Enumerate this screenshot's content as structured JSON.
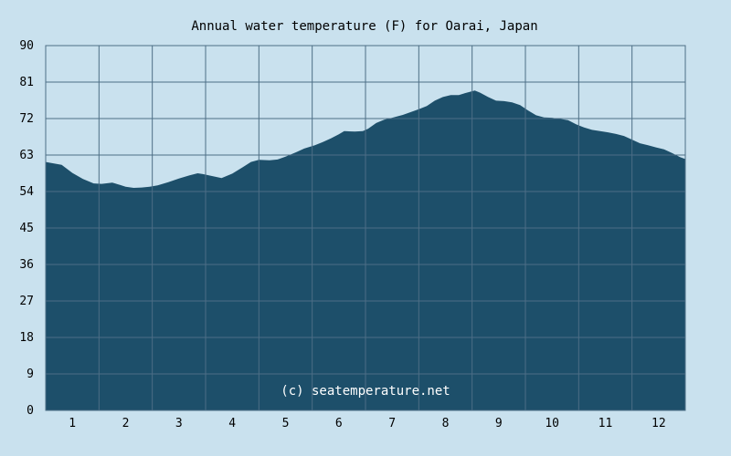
{
  "chart_data": {
    "type": "area",
    "title": "Annual water temperature (F) for Oarai, Japan",
    "xlabel": "",
    "ylabel": "",
    "x_ticks": [
      "1",
      "2",
      "3",
      "4",
      "5",
      "6",
      "7",
      "8",
      "9",
      "10",
      "11",
      "12"
    ],
    "y_ticks": [
      "0",
      "9",
      "18",
      "27",
      "36",
      "45",
      "54",
      "63",
      "72",
      "81",
      "90"
    ],
    "ylim": [
      0,
      90
    ],
    "xlim": [
      0.5,
      12.5
    ],
    "grid": true,
    "watermark": "(c) seatemperature.net",
    "colors": {
      "background": "#c9e1ee",
      "area": "#1d4f6a",
      "grid": "#4d6e86",
      "plot_border": "#4d6e86"
    },
    "series": [
      {
        "x": [
          0.5,
          0.62,
          0.8,
          1.0,
          1.2,
          1.4,
          1.55,
          1.75,
          1.9,
          2.0,
          2.15,
          2.3,
          2.45,
          2.6,
          2.8,
          3.0,
          3.2,
          3.35,
          3.45,
          3.6,
          3.8,
          4.0,
          4.2,
          4.35,
          4.5,
          4.7,
          4.85,
          5.0,
          5.2,
          5.35,
          5.55,
          5.7,
          5.85,
          6.0,
          6.1,
          6.3,
          6.45,
          6.55,
          6.7,
          6.85,
          7.0,
          7.2,
          7.35,
          7.5,
          7.65,
          7.8,
          7.95,
          8.1,
          8.25,
          8.4,
          8.55,
          8.65,
          8.8,
          8.95,
          9.1,
          9.25,
          9.4,
          9.55,
          9.7,
          9.85,
          10.0,
          10.15,
          10.3,
          10.45,
          10.6,
          10.75,
          10.9,
          11.05,
          11.2,
          11.35,
          11.5,
          11.65,
          11.8,
          11.95,
          12.1,
          12.25,
          12.4,
          12.5
        ],
        "y": [
          61.3,
          61.0,
          60.6,
          58.6,
          57.1,
          56.0,
          55.9,
          56.2,
          55.6,
          55.2,
          54.9,
          55.0,
          55.2,
          55.5,
          56.3,
          57.2,
          58.0,
          58.5,
          58.3,
          57.9,
          57.3,
          58.4,
          60.0,
          61.3,
          61.8,
          61.7,
          61.9,
          62.6,
          63.7,
          64.6,
          65.4,
          66.2,
          67.1,
          68.1,
          68.9,
          68.8,
          68.9,
          69.5,
          70.9,
          71.7,
          72.2,
          72.9,
          73.6,
          74.3,
          75.1,
          76.4,
          77.3,
          77.8,
          77.8,
          78.4,
          78.9,
          78.4,
          77.3,
          76.4,
          76.3,
          76.0,
          75.3,
          74.0,
          72.8,
          72.3,
          72.2,
          71.9,
          71.6,
          70.6,
          69.8,
          69.2,
          68.9,
          68.6,
          68.2,
          67.7,
          66.8,
          65.9,
          65.4,
          64.9,
          64.4,
          63.5,
          62.5,
          62.0
        ]
      }
    ]
  }
}
